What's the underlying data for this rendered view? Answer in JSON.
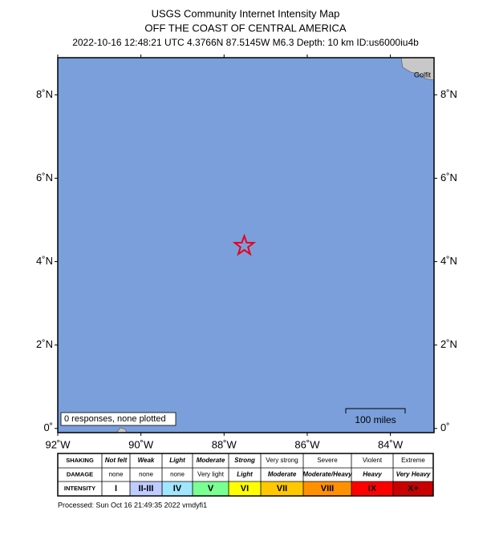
{
  "header": {
    "title": "USGS Community Internet Intensity Map",
    "subtitle": "OFF THE COAST OF CENTRAL AMERICA",
    "event": "2022-10-16 12:48:21 UTC 4.3766N 87.5145W M6.3 Depth: 10 km ID:us6000iu4b"
  },
  "map": {
    "latlim": [
      -0.1,
      8.89
    ],
    "lonlim": [
      92,
      82.95
    ],
    "latticks": [
      {
        "value": 0,
        "label": "0˚"
      },
      {
        "value": 2,
        "label": "2˚N"
      },
      {
        "value": 4,
        "label": "4˚N"
      },
      {
        "value": 6,
        "label": "6˚N"
      },
      {
        "value": 8,
        "label": "8˚N"
      }
    ],
    "lonticks": [
      {
        "value": 92,
        "label": "92˚W"
      },
      {
        "value": 90,
        "label": "90˚W"
      },
      {
        "value": 88,
        "label": "88˚W"
      },
      {
        "value": 86,
        "label": "86˚W"
      },
      {
        "value": 84,
        "label": "84˚W"
      }
    ],
    "epicenter": {
      "lat": 4.3766,
      "lon": 87.5145
    },
    "place": "Golfit",
    "note": "0 responses, none plotted",
    "scale": "100 miles"
  },
  "legend": {
    "rows": [
      {
        "label": "SHAKING",
        "cells": [
          "Not felt",
          "Weak",
          "Light",
          "Moderate",
          "Strong",
          "Very strong",
          "Severe",
          "Violent",
          "Extreme"
        ]
      },
      {
        "label": "DAMAGE",
        "cells": [
          "none",
          "none",
          "none",
          "Very light",
          "Light",
          "Moderate",
          "Moderate/Heavy",
          "Heavy",
          "Very Heavy"
        ]
      },
      {
        "label": "INTENSITY",
        "cells": [
          "I",
          "II-III",
          "IV",
          "V",
          "VI",
          "VII",
          "VIII",
          "IX",
          "X+"
        ]
      }
    ],
    "colors": [
      "#ffffff",
      "#bfccff",
      "#a0e6ff",
      "#7aff93",
      "#ffff00",
      "#ffc800",
      "#ff9100",
      "#ff0000",
      "#c80000"
    ]
  },
  "footer": "Processed: Sun Oct 16 21:49:35 2022 vmdyfi1"
}
